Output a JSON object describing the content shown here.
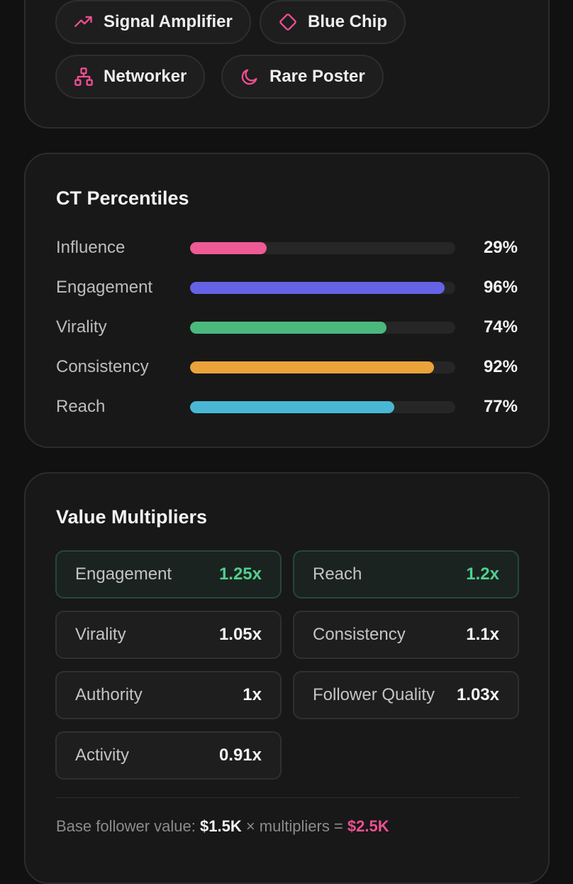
{
  "badges": [
    {
      "label": "Signal Amplifier",
      "icon": "trending-up-icon"
    },
    {
      "label": "Blue Chip",
      "icon": "diamond-icon"
    },
    {
      "label": "Networker",
      "icon": "network-icon"
    },
    {
      "label": "Rare Poster",
      "icon": "moon-icon"
    }
  ],
  "badge_icon_color": "#ee4f91",
  "percentiles": {
    "title": "CT Percentiles",
    "rows": [
      {
        "label": "Influence",
        "value": "29%",
        "fraction": 0.29,
        "color": "#ee5a96"
      },
      {
        "label": "Engagement",
        "value": "96%",
        "fraction": 0.96,
        "color": "#6662e6"
      },
      {
        "label": "Virality",
        "value": "74%",
        "fraction": 0.74,
        "color": "#4bb87e"
      },
      {
        "label": "Consistency",
        "value": "92%",
        "fraction": 0.92,
        "color": "#eba23a"
      },
      {
        "label": "Reach",
        "value": "77%",
        "fraction": 0.77,
        "color": "#49b7d4"
      }
    ]
  },
  "multipliers": {
    "title": "Value Multipliers",
    "items": [
      {
        "label": "Engagement",
        "value": "1.25x",
        "highlight": true
      },
      {
        "label": "Reach",
        "value": "1.2x",
        "highlight": true
      },
      {
        "label": "Virality",
        "value": "1.05x",
        "highlight": false
      },
      {
        "label": "Consistency",
        "value": "1.1x",
        "highlight": false
      },
      {
        "label": "Authority",
        "value": "1x",
        "highlight": false
      },
      {
        "label": "Follower Quality",
        "value": "1.03x",
        "highlight": false
      },
      {
        "label": "Activity",
        "value": "0.91x",
        "highlight": false
      }
    ],
    "footer": {
      "prefix": "Base follower value: ",
      "base_value": "$1.5K",
      "middle": " × multipliers = ",
      "total_value": "$2.5K"
    }
  }
}
